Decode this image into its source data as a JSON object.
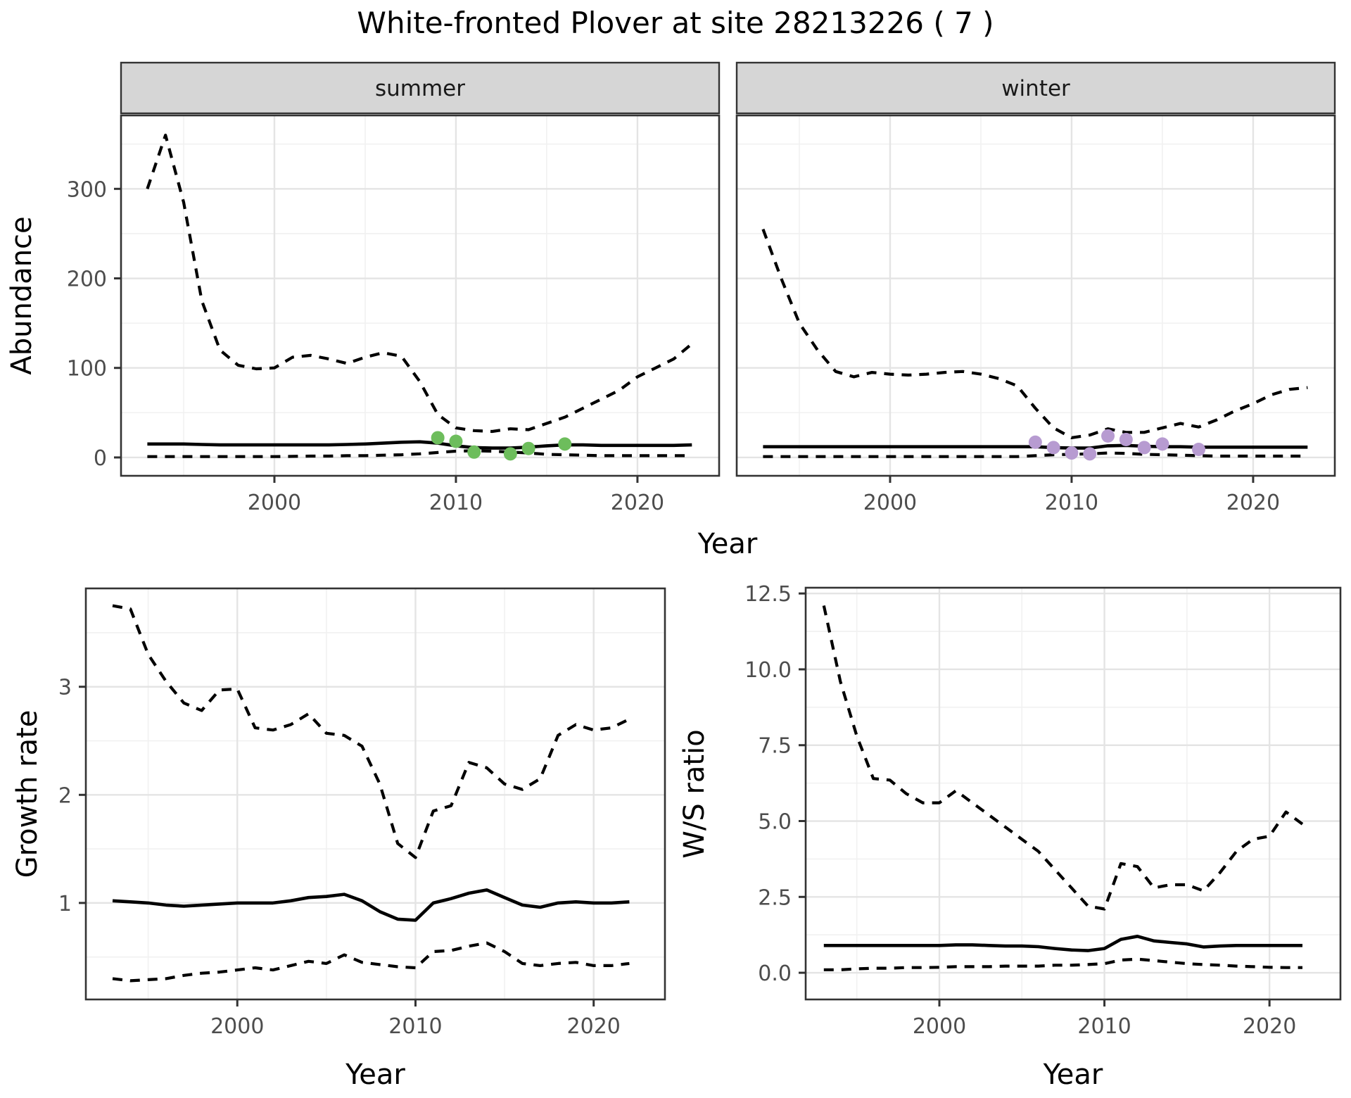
{
  "title": "White-fronted Plover at site 28213226 ( 7 )",
  "axis_labels": {
    "abundance": "Abundance",
    "growth": "Growth rate",
    "ws": "W/S ratio",
    "year": "Year"
  },
  "colors": {
    "summer_point": "#6dbd5c",
    "winter_point": "#b79bd1",
    "line": "#000000",
    "strip_fill": "#d6d6d6",
    "panel_border": "#333333",
    "grid_major": "#e4e4e4",
    "grid_minor": "#f1f1f1",
    "tick_label": "#4d4d4d"
  },
  "chart_data": [
    {
      "type": "line",
      "key": "abundance_summer",
      "facet": "summer",
      "xlabel": "Year",
      "ylabel": "Abundance",
      "xlim": [
        1991.55,
        2024.5
      ],
      "ylim": [
        -20.5,
        382
      ],
      "x_ticks": [
        2000,
        2010,
        2020
      ],
      "x_tick_labels": [
        "2000",
        "2010",
        "2020"
      ],
      "y_ticks": [
        0,
        100,
        200,
        300
      ],
      "y_tick_labels": [
        "0",
        "100",
        "200",
        "300"
      ],
      "x": [
        1993,
        1994,
        1995,
        1996,
        1997,
        1998,
        1999,
        2000,
        2001,
        2002,
        2003,
        2004,
        2005,
        2006,
        2007,
        2008,
        2009,
        2010,
        2011,
        2012,
        2013,
        2014,
        2015,
        2016,
        2017,
        2018,
        2019,
        2020,
        2021,
        2022,
        2023
      ],
      "series": [
        {
          "name": "upper_ci",
          "style": "dashed",
          "values": [
            300,
            360,
            285,
            175,
            120,
            103,
            99,
            100,
            112,
            114,
            110,
            105,
            112,
            117,
            113,
            85,
            48,
            33,
            30,
            29,
            32,
            31,
            38,
            45,
            55,
            65,
            75,
            90,
            100,
            110,
            127
          ]
        },
        {
          "name": "median",
          "style": "solid",
          "values": [
            15,
            15,
            15,
            14.5,
            14,
            14,
            14,
            14,
            14,
            14,
            14,
            14.5,
            15,
            16,
            17,
            17.5,
            16,
            13,
            11,
            10.5,
            10.5,
            11.5,
            13,
            14,
            14,
            13.5,
            13.5,
            13.5,
            13.5,
            13.5,
            14
          ]
        },
        {
          "name": "lower_ci",
          "style": "dashed",
          "values": [
            1,
            1,
            1,
            1,
            1,
            1,
            1,
            1,
            1.2,
            1.5,
            1.5,
            2,
            2,
            2.5,
            3,
            4,
            5.5,
            7,
            7.5,
            7,
            6,
            5,
            3.5,
            3,
            2.5,
            2,
            2,
            2,
            2,
            2,
            2
          ]
        }
      ],
      "points": {
        "name": "observed_counts",
        "color_key": "summer_point",
        "x": [
          2009,
          2010,
          2011,
          2013,
          2014,
          2016
        ],
        "y": [
          22,
          18,
          6,
          4,
          10,
          15
        ]
      }
    },
    {
      "type": "line",
      "key": "abundance_winter",
      "facet": "winter",
      "xlabel": "Year",
      "ylabel": "Abundance",
      "xlim": [
        1991.55,
        2024.5
      ],
      "ylim": [
        -20.5,
        382
      ],
      "x_ticks": [
        2000,
        2010,
        2020
      ],
      "x_tick_labels": [
        "2000",
        "2010",
        "2020"
      ],
      "y_ticks": [
        0,
        100,
        200,
        300
      ],
      "y_tick_labels": [
        "0",
        "100",
        "200",
        "300"
      ],
      "x": [
        1993,
        1994,
        1995,
        1996,
        1997,
        1998,
        1999,
        2000,
        2001,
        2002,
        2003,
        2004,
        2005,
        2006,
        2007,
        2008,
        2009,
        2010,
        2011,
        2012,
        2013,
        2014,
        2015,
        2016,
        2017,
        2018,
        2019,
        2020,
        2021,
        2022,
        2023
      ],
      "series": [
        {
          "name": "upper_ci",
          "style": "dashed",
          "values": [
            255,
            200,
            150,
            120,
            96,
            90,
            95,
            93,
            92,
            93,
            95,
            96,
            93,
            88,
            80,
            55,
            33,
            22,
            25,
            32,
            28,
            28,
            33,
            38,
            34,
            42,
            52,
            60,
            70,
            76,
            78
          ]
        },
        {
          "name": "median",
          "style": "solid",
          "values": [
            12,
            12,
            12,
            12,
            12,
            12,
            12,
            12,
            12,
            12,
            12,
            12,
            12,
            12,
            12,
            12,
            11,
            10.5,
            10.5,
            13,
            13.5,
            12.5,
            12,
            12,
            11.5,
            11.5,
            11.5,
            11.5,
            11.5,
            11.5,
            11.5
          ]
        },
        {
          "name": "lower_ci",
          "style": "dashed",
          "values": [
            1,
            1,
            1,
            1,
            1,
            1,
            1,
            1,
            1,
            1,
            1,
            1,
            1,
            1,
            1,
            2,
            3,
            3.5,
            4,
            5,
            4.5,
            3.5,
            3,
            2.5,
            2,
            1.5,
            1.5,
            1.5,
            1.5,
            1.5,
            1.5
          ]
        }
      ],
      "points": {
        "name": "observed_counts",
        "color_key": "winter_point",
        "x": [
          2008,
          2009,
          2010,
          2011,
          2012,
          2013,
          2014,
          2015,
          2017
        ],
        "y": [
          17,
          11,
          5,
          4,
          24,
          20,
          11,
          15,
          9
        ]
      }
    },
    {
      "type": "line",
      "key": "growth_rate",
      "facet": null,
      "xlabel": "Year",
      "ylabel": "Growth rate",
      "xlim": [
        1991.5,
        2024
      ],
      "ylim": [
        0.107,
        3.91
      ],
      "x_ticks": [
        2000,
        2010,
        2020
      ],
      "x_tick_labels": [
        "2000",
        "2010",
        "2020"
      ],
      "y_ticks": [
        1,
        2,
        3
      ],
      "y_tick_labels": [
        "1",
        "2",
        "3"
      ],
      "x": [
        1993,
        1994,
        1995,
        1996,
        1997,
        1998,
        1999,
        2000,
        2001,
        2002,
        2003,
        2004,
        2005,
        2006,
        2007,
        2008,
        2009,
        2010,
        2011,
        2012,
        2013,
        2014,
        2015,
        2016,
        2017,
        2018,
        2019,
        2020,
        2021,
        2022
      ],
      "series": [
        {
          "name": "upper_ci",
          "style": "dashed",
          "values": [
            3.75,
            3.72,
            3.3,
            3.05,
            2.85,
            2.78,
            2.97,
            2.98,
            2.62,
            2.6,
            2.65,
            2.75,
            2.57,
            2.55,
            2.45,
            2.1,
            1.55,
            1.42,
            1.85,
            1.9,
            2.3,
            2.25,
            2.1,
            2.05,
            2.15,
            2.55,
            2.65,
            2.6,
            2.62,
            2.7
          ]
        },
        {
          "name": "median",
          "style": "solid",
          "values": [
            1.02,
            1.01,
            1.0,
            0.98,
            0.97,
            0.98,
            0.99,
            1.0,
            1.0,
            1.0,
            1.02,
            1.05,
            1.06,
            1.08,
            1.02,
            0.92,
            0.85,
            0.84,
            1.0,
            1.04,
            1.09,
            1.12,
            1.05,
            0.98,
            0.96,
            1.0,
            1.01,
            1.0,
            1.0,
            1.01
          ]
        },
        {
          "name": "lower_ci",
          "style": "dashed",
          "values": [
            0.3,
            0.28,
            0.29,
            0.3,
            0.33,
            0.35,
            0.36,
            0.38,
            0.4,
            0.38,
            0.42,
            0.46,
            0.44,
            0.52,
            0.45,
            0.43,
            0.41,
            0.4,
            0.55,
            0.56,
            0.6,
            0.63,
            0.55,
            0.44,
            0.42,
            0.44,
            0.45,
            0.42,
            0.42,
            0.44
          ]
        }
      ],
      "points": null
    },
    {
      "type": "line",
      "key": "ws_ratio",
      "facet": null,
      "xlabel": "Year",
      "ylabel": "W/S ratio",
      "xlim": [
        1991.9,
        2024.3
      ],
      "ylim": [
        -0.88,
        12.69
      ],
      "x_ticks": [
        2000,
        2010,
        2020
      ],
      "x_tick_labels": [
        "2000",
        "2010",
        "2020"
      ],
      "y_ticks": [
        0,
        2.5,
        5,
        7.5,
        10,
        12.5
      ],
      "y_tick_labels": [
        "0.0",
        "2.5",
        "5.0",
        "7.5",
        "10.0",
        "12.5"
      ],
      "x": [
        1993,
        1994,
        1995,
        1996,
        1997,
        1998,
        1999,
        2000,
        2001,
        2002,
        2003,
        2004,
        2005,
        2006,
        2007,
        2008,
        2009,
        2010,
        2011,
        2012,
        2013,
        2014,
        2015,
        2016,
        2017,
        2018,
        2019,
        2020,
        2021,
        2022
      ],
      "series": [
        {
          "name": "upper_ci",
          "style": "dashed",
          "values": [
            12.1,
            9.6,
            7.8,
            6.4,
            6.35,
            5.9,
            5.6,
            5.6,
            6.0,
            5.6,
            5.2,
            4.8,
            4.4,
            4.0,
            3.4,
            2.8,
            2.2,
            2.1,
            3.6,
            3.5,
            2.8,
            2.9,
            2.9,
            2.7,
            3.3,
            4.0,
            4.4,
            4.5,
            5.3,
            4.9
          ]
        },
        {
          "name": "median",
          "style": "solid",
          "values": [
            0.9,
            0.9,
            0.9,
            0.9,
            0.9,
            0.9,
            0.9,
            0.9,
            0.92,
            0.92,
            0.9,
            0.88,
            0.88,
            0.86,
            0.8,
            0.75,
            0.73,
            0.8,
            1.1,
            1.2,
            1.05,
            1.0,
            0.95,
            0.85,
            0.88,
            0.9,
            0.9,
            0.9,
            0.9,
            0.9
          ]
        },
        {
          "name": "lower_ci",
          "style": "dashed",
          "values": [
            0.1,
            0.1,
            0.13,
            0.15,
            0.15,
            0.17,
            0.17,
            0.18,
            0.2,
            0.2,
            0.2,
            0.22,
            0.22,
            0.22,
            0.25,
            0.25,
            0.27,
            0.3,
            0.42,
            0.45,
            0.4,
            0.35,
            0.3,
            0.27,
            0.25,
            0.22,
            0.2,
            0.18,
            0.17,
            0.17
          ]
        }
      ],
      "points": null
    }
  ]
}
